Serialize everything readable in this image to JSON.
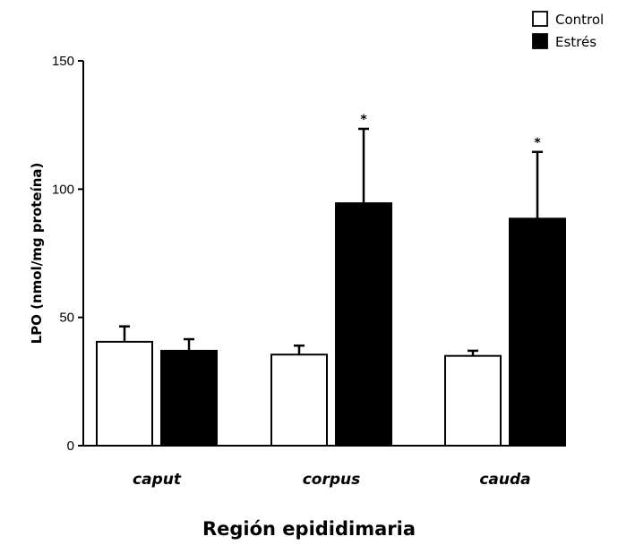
{
  "chart_data": {
    "type": "bar",
    "categories": [
      "caput",
      "corpus",
      "cauda"
    ],
    "series": [
      {
        "name": "Control",
        "values": [
          40.5,
          35.5,
          35
        ],
        "errors": [
          6,
          3.5,
          2
        ],
        "significance": [
          "",
          "",
          ""
        ],
        "color": "#ffffff"
      },
      {
        "name": "Estrés",
        "values": [
          37,
          94.5,
          88.5
        ],
        "errors": [
          4.5,
          29,
          26
        ],
        "significance": [
          "",
          "*",
          "*"
        ],
        "color": "#000000"
      }
    ],
    "xlabel": "Región epididimaria",
    "ylabel": "LPO (nmol/mg proteína)",
    "ylim": [
      0,
      150
    ],
    "yticks": [
      0,
      50,
      100,
      150
    ],
    "legend_position": "top-right",
    "grid": false
  }
}
